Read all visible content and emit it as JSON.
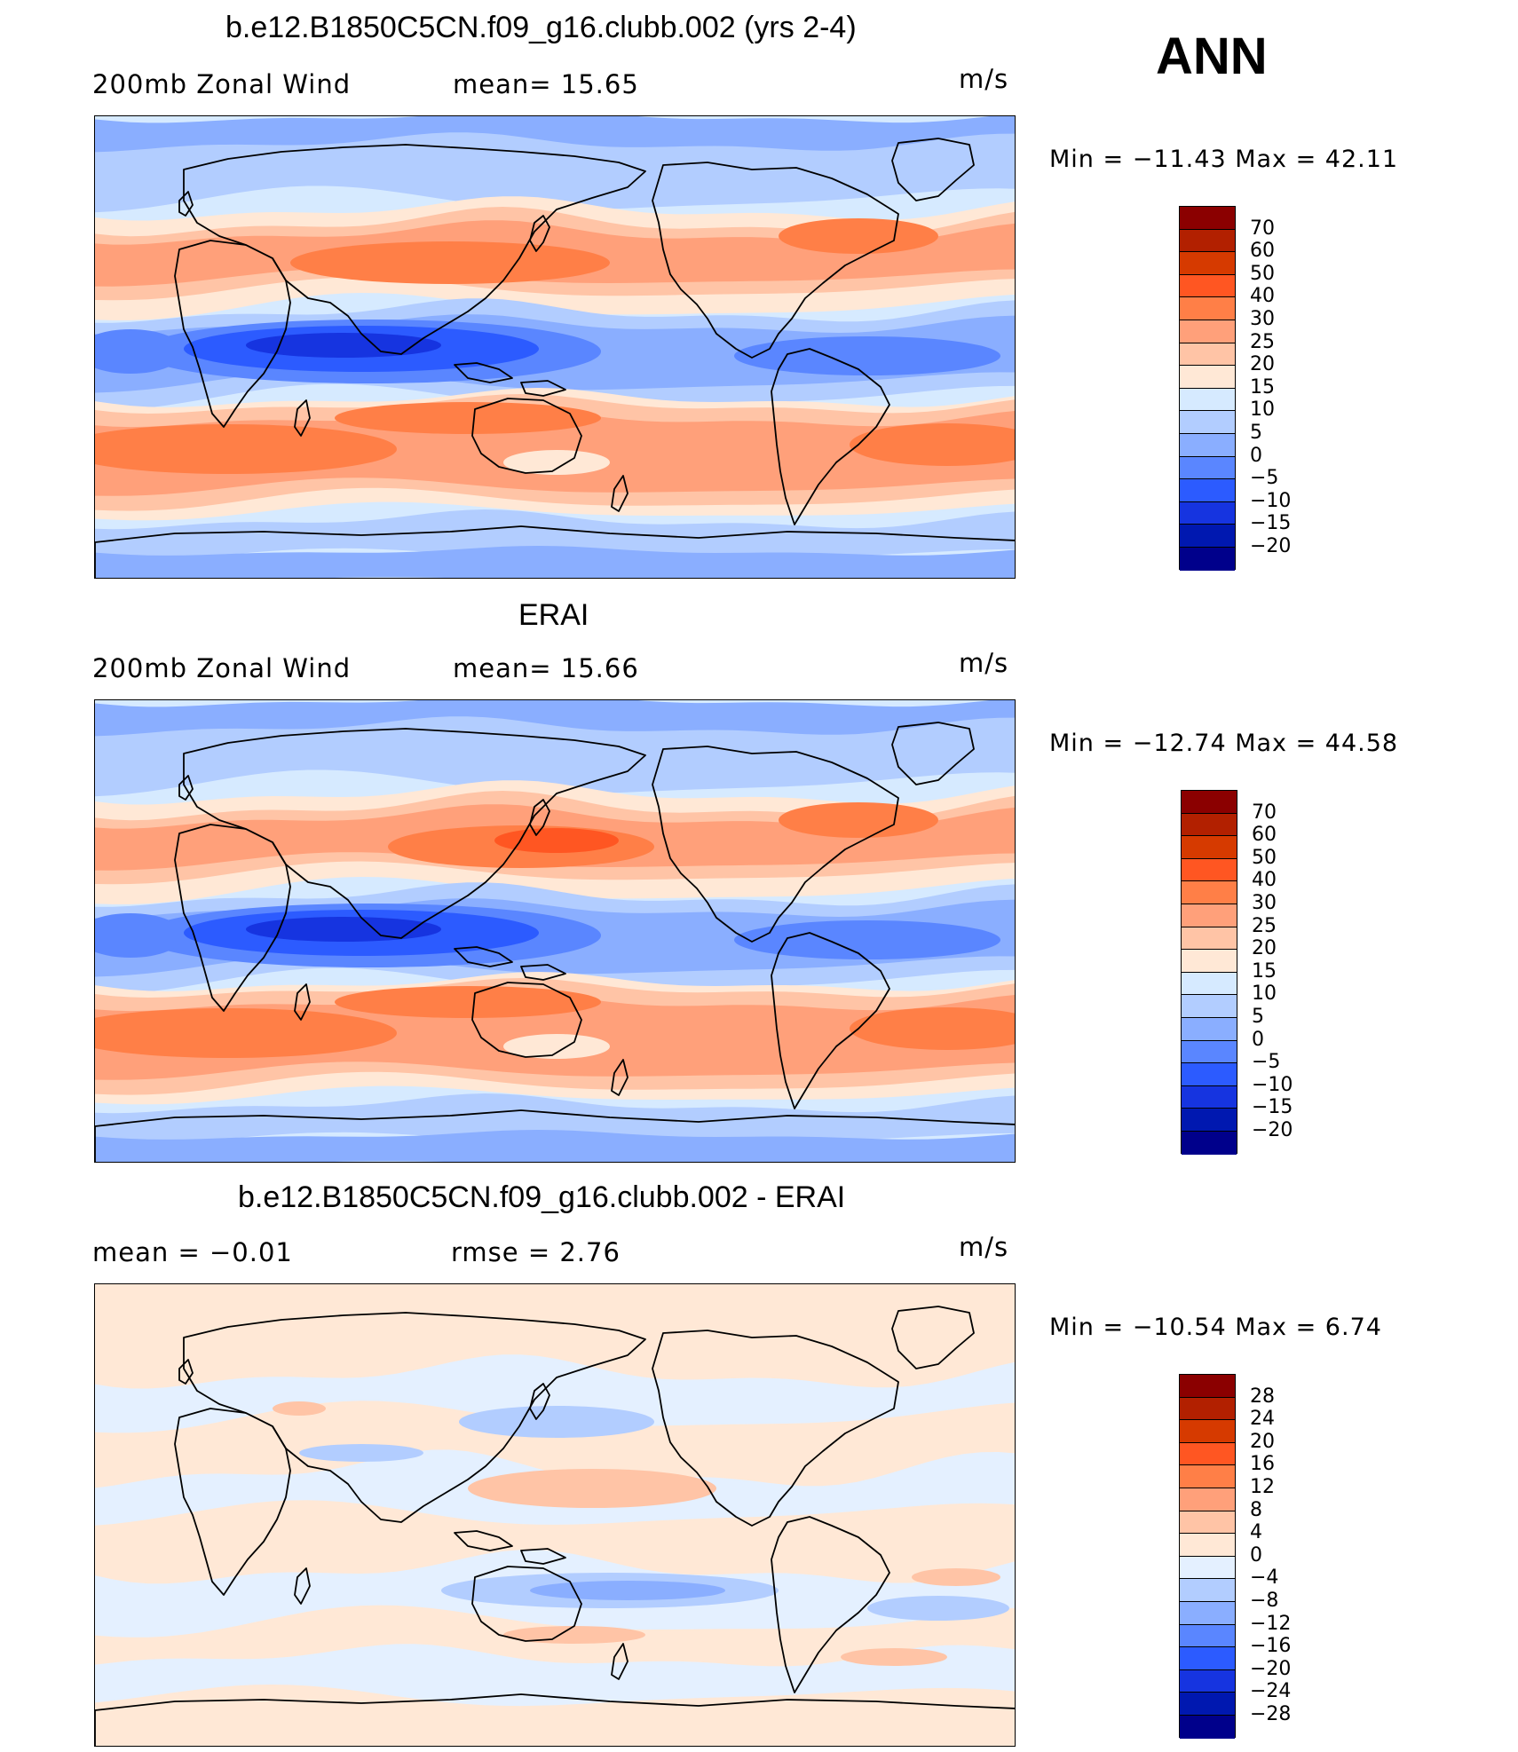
{
  "season_label": "ANN",
  "panels": [
    {
      "title": "b.e12.B1850C5CN.f09_g16.clubb.002 (yrs 2-4)",
      "left_label": "200mb  Zonal  Wind",
      "center_label": "mean=   15.65",
      "units": "m/s",
      "minmax": "Min  =  −11.43  Max  =    42.11",
      "colorbar_labels": [
        "70",
        "60",
        "50",
        "40",
        "30",
        "25",
        "20",
        "15",
        "10",
        "5",
        "0",
        "−5",
        "−10",
        "−15",
        "−20"
      ],
      "stats": {
        "mean": 15.65,
        "min": -11.43,
        "max": 42.11
      }
    },
    {
      "title": "ERAI",
      "left_label": "200mb  Zonal  Wind",
      "center_label": "mean=   15.66",
      "units": "m/s",
      "minmax": "Min  =  −12.74  Max  =    44.58",
      "colorbar_labels": [
        "70",
        "60",
        "50",
        "40",
        "30",
        "25",
        "20",
        "15",
        "10",
        "5",
        "0",
        "−5",
        "−10",
        "−15",
        "−20"
      ],
      "stats": {
        "mean": 15.66,
        "min": -12.74,
        "max": 44.58
      }
    },
    {
      "title": "b.e12.B1850C5CN.f09_g16.clubb.002 - ERAI",
      "left_label": "mean  =    −0.01",
      "center_label": "rmse  =     2.76",
      "units": "m/s",
      "minmax": "Min  =  −10.54  Max  =     6.74",
      "colorbar_labels": [
        "28",
        "24",
        "20",
        "16",
        "12",
        "8",
        "4",
        "0",
        "−4",
        "−8",
        "−12",
        "−16",
        "−20",
        "−24",
        "−28"
      ],
      "stats": {
        "mean": -0.01,
        "rmse": 2.76,
        "min": -10.54,
        "max": 6.74
      }
    }
  ],
  "colors": {
    "abs_colorbar": [
      "#8b0000",
      "#b22000",
      "#d63a00",
      "#ff5622",
      "#ff7f47",
      "#ffa07a",
      "#ffc4a6",
      "#ffe8d6",
      "#d6eaff",
      "#b2cdff",
      "#8aaeff",
      "#5a86ff",
      "#2c5bff",
      "#1634e0",
      "#0018b0",
      "#00008b"
    ],
    "diff_colorbar": [
      "#8b0000",
      "#b22000",
      "#d63a00",
      "#ff5622",
      "#ff7f47",
      "#ffa07a",
      "#ffc4a6",
      "#ffe8d6",
      "#e4f0ff",
      "#b2cdff",
      "#8aaeff",
      "#5a86ff",
      "#2c5bff",
      "#1634e0",
      "#0018b0",
      "#00008b"
    ]
  }
}
